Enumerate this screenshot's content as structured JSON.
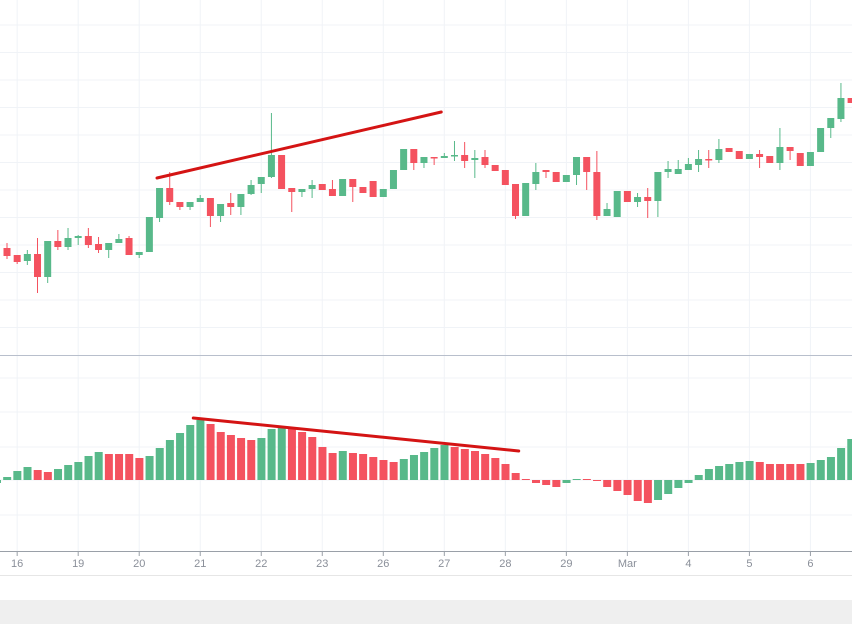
{
  "chart_data": [
    {
      "type": "candlestick",
      "title": "",
      "xlabel": "",
      "ylabel": "",
      "grid": true,
      "colors": {
        "up": "#58b98a",
        "down": "#f4525f",
        "trendline": "#d41414",
        "grid": "#f0f3f7"
      },
      "x_tick_labels": [
        "16",
        "19",
        "20",
        "21",
        "22",
        "23",
        "26",
        "27",
        "28",
        "29",
        "Mar",
        "4",
        "5",
        "6"
      ],
      "ohlc": [
        [
          11.2,
          11.7,
          10.1,
          10.4
        ],
        [
          10.5,
          10.5,
          9.6,
          9.8
        ],
        [
          9.9,
          11.0,
          9.5,
          10.6
        ],
        [
          10.6,
          12.2,
          6.7,
          8.3
        ],
        [
          8.3,
          11.9,
          7.7,
          11.9
        ],
        [
          11.9,
          13.0,
          11.0,
          11.3
        ],
        [
          11.3,
          13.2,
          11.0,
          12.2
        ],
        [
          12.2,
          12.5,
          11.5,
          12.4
        ],
        [
          12.4,
          13.2,
          11.2,
          11.5
        ],
        [
          11.6,
          12.3,
          10.7,
          11.0
        ],
        [
          11.0,
          11.7,
          10.2,
          11.7
        ],
        [
          11.7,
          12.6,
          11.7,
          12.1
        ],
        [
          12.2,
          12.4,
          10.5,
          10.5
        ],
        [
          10.5,
          10.8,
          10.2,
          10.8
        ],
        [
          10.8,
          14.3,
          10.8,
          14.3
        ],
        [
          14.2,
          17.2,
          13.8,
          17.2
        ],
        [
          17.2,
          18.8,
          15.5,
          15.8
        ],
        [
          15.8,
          15.8,
          15.0,
          15.3
        ],
        [
          15.3,
          15.8,
          15.0,
          15.8
        ],
        [
          15.8,
          16.5,
          15.8,
          16.2
        ],
        [
          16.2,
          16.2,
          13.3,
          14.4
        ],
        [
          14.4,
          15.6,
          13.8,
          15.6
        ],
        [
          15.7,
          16.7,
          14.5,
          15.3
        ],
        [
          15.3,
          16.6,
          14.5,
          16.6
        ],
        [
          16.6,
          18.0,
          16.5,
          17.5
        ],
        [
          17.6,
          18.3,
          16.7,
          18.3
        ],
        [
          18.3,
          24.7,
          18.2,
          20.5
        ],
        [
          20.5,
          20.5,
          17.1,
          17.1
        ],
        [
          17.2,
          17.2,
          14.8,
          16.8
        ],
        [
          16.8,
          17.1,
          16.3,
          17.1
        ],
        [
          17.1,
          18.0,
          16.2,
          17.5
        ],
        [
          17.6,
          17.6,
          17.0,
          17.0
        ],
        [
          17.1,
          18.0,
          16.4,
          16.4
        ],
        [
          16.4,
          18.1,
          16.4,
          18.1
        ],
        [
          18.1,
          18.1,
          15.8,
          17.3
        ],
        [
          17.3,
          17.3,
          16.7,
          16.7
        ],
        [
          17.9,
          17.9,
          16.3,
          16.3
        ],
        [
          16.3,
          17.1,
          16.3,
          17.1
        ],
        [
          17.1,
          19.0,
          17.1,
          19.0
        ],
        [
          19.0,
          21.1,
          19.0,
          21.1
        ],
        [
          21.1,
          21.1,
          19.0,
          19.7
        ],
        [
          19.7,
          20.3,
          19.2,
          20.3
        ],
        [
          20.3,
          20.3,
          19.5,
          20.2
        ],
        [
          20.2,
          20.7,
          20.2,
          20.4
        ],
        [
          20.4,
          21.9,
          19.9,
          20.5
        ],
        [
          20.5,
          21.8,
          19.2,
          19.9
        ],
        [
          20.0,
          21.0,
          18.2,
          20.2
        ],
        [
          20.3,
          21.0,
          19.2,
          19.5
        ],
        [
          19.5,
          19.5,
          18.9,
          18.9
        ],
        [
          19.0,
          19.0,
          17.5,
          17.5
        ],
        [
          17.6,
          17.6,
          14.1,
          14.4
        ],
        [
          14.4,
          17.7,
          14.4,
          17.7
        ],
        [
          17.6,
          19.7,
          17.0,
          18.8
        ],
        [
          19.0,
          19.0,
          18.2,
          18.8
        ],
        [
          18.8,
          18.8,
          17.8,
          17.8
        ],
        [
          17.8,
          18.5,
          17.8,
          18.5
        ],
        [
          18.5,
          20.3,
          17.5,
          20.3
        ],
        [
          20.3,
          20.3,
          17.0,
          18.8
        ],
        [
          18.8,
          20.9,
          14.0,
          14.4
        ],
        [
          14.4,
          15.7,
          14.4,
          15.1
        ],
        [
          14.3,
          16.9,
          14.3,
          16.9
        ],
        [
          16.9,
          16.9,
          15.8,
          15.8
        ],
        [
          15.8,
          16.7,
          15.3,
          16.3
        ],
        [
          16.3,
          17.2,
          14.2,
          15.9
        ],
        [
          15.9,
          18.8,
          14.3,
          18.8
        ],
        [
          18.8,
          19.9,
          18.2,
          19.1
        ],
        [
          18.6,
          20.0,
          18.6,
          19.1
        ],
        [
          19.0,
          20.2,
          19.0,
          19.6
        ],
        [
          19.5,
          21.0,
          18.8,
          20.1
        ],
        [
          20.1,
          21.0,
          19.2,
          20.0
        ],
        [
          20.0,
          22.1,
          19.7,
          21.1
        ],
        [
          21.2,
          21.2,
          20.8,
          20.8
        ],
        [
          20.9,
          20.9,
          20.1,
          20.1
        ],
        [
          20.1,
          20.6,
          20.1,
          20.6
        ],
        [
          20.6,
          21.0,
          19.2,
          20.3
        ],
        [
          20.4,
          20.4,
          19.7,
          19.7
        ],
        [
          19.7,
          23.2,
          19.0,
          21.3
        ],
        [
          21.3,
          21.3,
          20.0,
          20.9
        ],
        [
          20.7,
          20.7,
          19.4,
          19.4
        ],
        [
          19.4,
          20.8,
          19.4,
          20.8
        ],
        [
          20.8,
          23.2,
          20.8,
          23.2
        ],
        [
          23.2,
          24.2,
          22.2,
          24.2
        ],
        [
          24.1,
          27.7,
          23.8,
          26.2
        ],
        [
          26.2,
          26.2,
          25.7,
          25.7
        ]
      ],
      "trendline": {
        "from": {
          "bar": 14.75,
          "price": 18.2
        },
        "to": {
          "bar": 42.7,
          "price": 24.8
        }
      }
    },
    {
      "type": "bar",
      "title": "",
      "grid": true,
      "values": [
        -3,
        3,
        9,
        13,
        10,
        8,
        11,
        15,
        18,
        24,
        28,
        26,
        26,
        26,
        22,
        24,
        32,
        40,
        47,
        55,
        60,
        56,
        48,
        45,
        42,
        40,
        42,
        51,
        53,
        51,
        48,
        43,
        33,
        27,
        29,
        27,
        26,
        23,
        20,
        18,
        21,
        25,
        28,
        32,
        35,
        33,
        31,
        29,
        26,
        22,
        16,
        7,
        1,
        -3,
        -5,
        -7,
        -3,
        1,
        1,
        0,
        -7,
        -11,
        -15,
        -21,
        -23,
        -20,
        -14,
        -8,
        -3,
        5,
        11,
        14,
        16,
        18,
        19,
        18,
        16,
        16,
        16,
        16,
        17,
        20,
        23,
        32,
        41
      ],
      "trendline": {
        "from": {
          "bar": 19.3,
          "value": 62
        },
        "to": {
          "bar": 51.3,
          "value": 29
        }
      }
    }
  ]
}
